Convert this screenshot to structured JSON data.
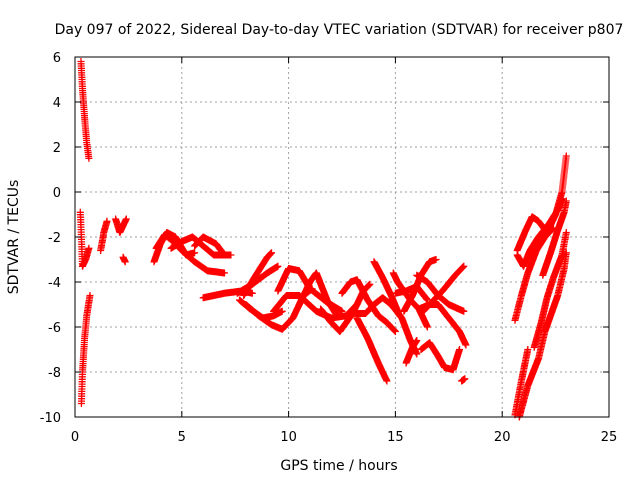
{
  "chart_data": {
    "type": "scatter",
    "title": "Day 097 of 2022, Sidereal Day-to-day VTEC variation (SDTVAR) for receiver p807",
    "xlabel": "GPS time / hours",
    "ylabel": "SDTVAR / TECUs",
    "xlim": [
      0,
      25
    ],
    "ylim": [
      -10,
      6
    ],
    "xticks": [
      "0",
      "5",
      "10",
      "15",
      "20",
      "25"
    ],
    "yticks": [
      "-10",
      "-8",
      "-6",
      "-4",
      "-2",
      "0",
      "2",
      "4",
      "6"
    ],
    "grid": true,
    "marker": "+",
    "colors": {
      "series": "#ff0000",
      "grid": "#a0a0a0",
      "axis": "#000000"
    },
    "tracks": [
      [
        [
          0.28,
          5.8
        ],
        [
          0.35,
          4.6
        ],
        [
          0.45,
          3.3
        ],
        [
          0.55,
          2.2
        ],
        [
          0.65,
          1.5
        ]
      ],
      [
        [
          0.25,
          -0.9
        ],
        [
          0.3,
          -2.0
        ],
        [
          0.35,
          -3.3
        ],
        [
          0.5,
          -3.0
        ],
        [
          0.65,
          -2.5
        ]
      ],
      [
        [
          0.3,
          -9.4
        ],
        [
          0.35,
          -8.0
        ],
        [
          0.45,
          -6.5
        ],
        [
          0.55,
          -5.5
        ],
        [
          0.7,
          -4.6
        ]
      ],
      [
        [
          1.2,
          -2.6
        ],
        [
          1.35,
          -1.8
        ],
        [
          1.5,
          -1.3
        ]
      ],
      [
        [
          1.9,
          -1.2
        ],
        [
          2.1,
          -1.8
        ],
        [
          2.4,
          -1.2
        ]
      ],
      [
        [
          2.25,
          -2.9
        ],
        [
          2.35,
          -3.1
        ]
      ],
      [
        [
          3.7,
          -3.1
        ],
        [
          4.0,
          -2.3
        ],
        [
          4.3,
          -1.8
        ],
        [
          4.7,
          -2.0
        ],
        [
          5.2,
          -2.8
        ],
        [
          5.6,
          -2.7
        ]
      ],
      [
        [
          3.8,
          -2.5
        ],
        [
          4.2,
          -1.9
        ],
        [
          4.6,
          -2.2
        ],
        [
          5.0,
          -2.6
        ],
        [
          5.6,
          -3.1
        ],
        [
          6.2,
          -3.5
        ],
        [
          7.0,
          -3.6
        ]
      ],
      [
        [
          4.5,
          -2.5
        ],
        [
          5.0,
          -2.2
        ],
        [
          5.5,
          -2.0
        ],
        [
          6.0,
          -2.4
        ],
        [
          6.5,
          -2.8
        ],
        [
          7.3,
          -2.8
        ]
      ],
      [
        [
          5.6,
          -2.4
        ],
        [
          6.0,
          -2.0
        ],
        [
          6.6,
          -2.3
        ],
        [
          7.0,
          -2.8
        ]
      ],
      [
        [
          6.0,
          -4.7
        ],
        [
          7.0,
          -4.5
        ],
        [
          7.8,
          -4.4
        ],
        [
          8.3,
          -4.5
        ]
      ],
      [
        [
          7.6,
          -4.5
        ],
        [
          8.3,
          -4.1
        ],
        [
          9.0,
          -3.6
        ],
        [
          9.5,
          -3.3
        ]
      ],
      [
        [
          7.9,
          -4.6
        ],
        [
          8.4,
          -3.8
        ],
        [
          9.0,
          -2.9
        ],
        [
          9.2,
          -2.7
        ]
      ],
      [
        [
          7.7,
          -4.8
        ],
        [
          8.2,
          -5.2
        ],
        [
          8.8,
          -5.6
        ],
        [
          9.3,
          -5.5
        ],
        [
          9.7,
          -5.3
        ]
      ],
      [
        [
          8.0,
          -5.0
        ],
        [
          8.6,
          -5.5
        ],
        [
          9.2,
          -5.9
        ],
        [
          9.7,
          -6.1
        ],
        [
          10.2,
          -5.6
        ],
        [
          10.7,
          -4.6
        ],
        [
          11.1,
          -4.3
        ]
      ],
      [
        [
          9.5,
          -4.4
        ],
        [
          10.0,
          -3.4
        ],
        [
          10.5,
          -3.5
        ],
        [
          11.0,
          -4.3
        ],
        [
          11.8,
          -4.9
        ],
        [
          12.5,
          -5.3
        ]
      ],
      [
        [
          9.3,
          -5.3
        ],
        [
          9.9,
          -4.6
        ],
        [
          10.5,
          -4.6
        ],
        [
          11.3,
          -5.3
        ],
        [
          12.0,
          -5.6
        ],
        [
          12.7,
          -5.5
        ],
        [
          13.2,
          -5.0
        ]
      ],
      [
        [
          10.5,
          -5.0
        ],
        [
          11.0,
          -4.0
        ],
        [
          11.3,
          -3.6
        ],
        [
          11.8,
          -4.8
        ],
        [
          12.2,
          -5.4
        ]
      ],
      [
        [
          11.5,
          -5.2
        ],
        [
          12.0,
          -5.8
        ],
        [
          12.4,
          -6.2
        ],
        [
          13.0,
          -5.4
        ],
        [
          13.5,
          -4.4
        ],
        [
          13.8,
          -4.1
        ]
      ],
      [
        [
          12.5,
          -4.5
        ],
        [
          12.9,
          -4.0
        ],
        [
          13.2,
          -3.9
        ],
        [
          13.7,
          -4.8
        ],
        [
          14.2,
          -5.5
        ],
        [
          14.6,
          -5.8
        ],
        [
          15.0,
          -6.2
        ]
      ],
      [
        [
          13.1,
          -5.4
        ],
        [
          13.6,
          -5.4
        ],
        [
          14.0,
          -5.0
        ],
        [
          14.4,
          -4.7
        ],
        [
          14.8,
          -5.0
        ],
        [
          15.3,
          -5.6
        ],
        [
          15.7,
          -6.6
        ],
        [
          16.0,
          -7.2
        ]
      ],
      [
        [
          13.2,
          -5.6
        ],
        [
          13.7,
          -6.5
        ],
        [
          14.2,
          -7.6
        ],
        [
          14.6,
          -8.4
        ]
      ],
      [
        [
          14.0,
          -3.1
        ],
        [
          14.4,
          -3.8
        ],
        [
          14.8,
          -4.6
        ],
        [
          15.2,
          -5.5
        ]
      ],
      [
        [
          14.9,
          -3.6
        ],
        [
          15.1,
          -4.0
        ],
        [
          15.4,
          -4.4
        ],
        [
          15.7,
          -4.8
        ],
        [
          16.1,
          -5.2
        ],
        [
          16.5,
          -6.0
        ]
      ],
      [
        [
          15.0,
          -4.5
        ],
        [
          15.5,
          -4.4
        ],
        [
          16.0,
          -4.2
        ],
        [
          16.5,
          -4.8
        ]
      ],
      [
        [
          15.4,
          -5.3
        ],
        [
          15.8,
          -4.6
        ],
        [
          16.2,
          -3.7
        ],
        [
          16.6,
          -3.1
        ],
        [
          16.9,
          -3.0
        ]
      ],
      [
        [
          16.0,
          -3.7
        ],
        [
          16.5,
          -4.0
        ],
        [
          17.0,
          -4.6
        ],
        [
          17.5,
          -5.0
        ],
        [
          18.2,
          -5.3
        ]
      ],
      [
        [
          16.1,
          -5.2
        ],
        [
          16.6,
          -5.0
        ],
        [
          17.0,
          -5.0
        ],
        [
          17.5,
          -5.6
        ],
        [
          18.0,
          -6.2
        ],
        [
          18.3,
          -6.8
        ]
      ],
      [
        [
          16.3,
          -5.3
        ],
        [
          16.7,
          -4.9
        ],
        [
          17.2,
          -4.4
        ],
        [
          17.8,
          -3.7
        ],
        [
          18.2,
          -3.3
        ]
      ],
      [
        [
          16.2,
          -7.0
        ],
        [
          16.6,
          -6.7
        ],
        [
          17.0,
          -7.3
        ],
        [
          17.3,
          -7.8
        ],
        [
          17.7,
          -7.9
        ],
        [
          18.0,
          -7.0
        ]
      ],
      [
        [
          15.5,
          -7.6
        ],
        [
          15.8,
          -6.9
        ],
        [
          16.0,
          -6.6
        ]
      ],
      [
        [
          18.1,
          -8.4
        ],
        [
          18.25,
          -8.3
        ]
      ],
      [
        [
          20.6,
          -5.7
        ],
        [
          20.9,
          -4.6
        ],
        [
          21.2,
          -3.6
        ],
        [
          21.6,
          -2.6
        ],
        [
          22.0,
          -2.0
        ],
        [
          22.4,
          -1.6
        ]
      ],
      [
        [
          20.7,
          -2.8
        ],
        [
          21.0,
          -3.3
        ],
        [
          21.3,
          -2.6
        ],
        [
          21.7,
          -2.0
        ],
        [
          22.2,
          -1.4
        ],
        [
          22.6,
          -0.8
        ],
        [
          22.8,
          -0.3
        ]
      ],
      [
        [
          20.7,
          -2.6
        ],
        [
          21.1,
          -1.7
        ],
        [
          21.4,
          -1.1
        ],
        [
          21.7,
          -1.3
        ],
        [
          22.1,
          -1.8
        ],
        [
          22.5,
          -1.0
        ],
        [
          22.8,
          0.0
        ],
        [
          23.0,
          1.6
        ]
      ],
      [
        [
          21.5,
          -6.9
        ],
        [
          21.8,
          -5.9
        ],
        [
          22.1,
          -4.7
        ],
        [
          22.4,
          -3.8
        ],
        [
          22.8,
          -2.8
        ],
        [
          23.0,
          -1.8
        ]
      ],
      [
        [
          20.8,
          -10.0
        ],
        [
          21.2,
          -8.6
        ],
        [
          21.7,
          -7.4
        ],
        [
          22.0,
          -6.2
        ],
        [
          22.3,
          -5.4
        ],
        [
          22.6,
          -4.6
        ],
        [
          22.9,
          -3.4
        ],
        [
          23.0,
          -2.7
        ]
      ],
      [
        [
          20.6,
          -9.9
        ],
        [
          20.9,
          -8.4
        ],
        [
          21.2,
          -7.0
        ]
      ],
      [
        [
          21.9,
          -3.7
        ],
        [
          22.3,
          -2.6
        ],
        [
          22.6,
          -1.7
        ],
        [
          22.9,
          -0.9
        ],
        [
          23.0,
          -0.4
        ]
      ]
    ]
  }
}
